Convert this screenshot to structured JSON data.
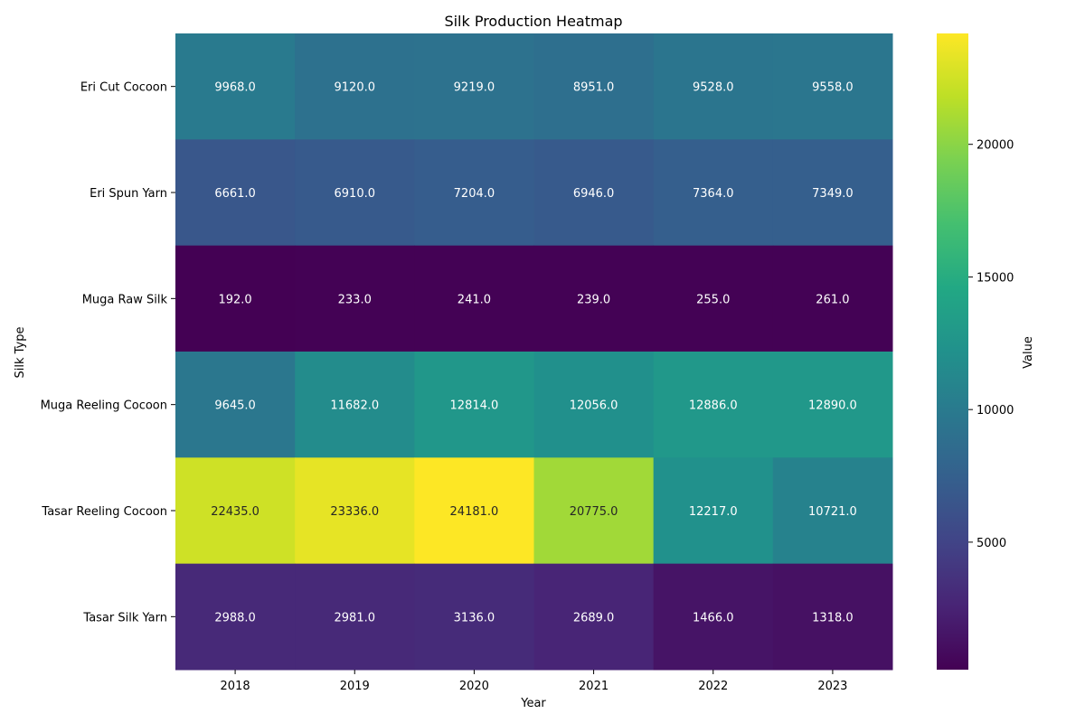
{
  "chart_data": {
    "type": "heatmap",
    "title": "Silk Production Heatmap",
    "xlabel": "Year",
    "ylabel": "Silk Type",
    "x_categories": [
      "2018",
      "2019",
      "2020",
      "2021",
      "2022",
      "2023"
    ],
    "y_categories": [
      "Eri Cut Cocoon",
      "Eri Spun Yarn",
      "Muga Raw Silk",
      "Muga Reeling Cocoon",
      "Tasar Reeling Cocoon",
      "Tasar Silk Yarn"
    ],
    "values": [
      [
        9968.0,
        9120.0,
        9219.0,
        8951.0,
        9528.0,
        9558.0
      ],
      [
        6661.0,
        6910.0,
        7204.0,
        6946.0,
        7364.0,
        7349.0
      ],
      [
        192.0,
        233.0,
        241.0,
        239.0,
        255.0,
        261.0
      ],
      [
        9645.0,
        11682.0,
        12814.0,
        12056.0,
        12886.0,
        12890.0
      ],
      [
        22435.0,
        23336.0,
        24181.0,
        20775.0,
        12217.0,
        10721.0
      ],
      [
        2988.0,
        2981.0,
        3136.0,
        2689.0,
        1466.0,
        1318.0
      ]
    ],
    "colormap": "viridis",
    "value_range": [
      192.0,
      24181.0
    ],
    "colorbar": {
      "label": "Value",
      "ticks": [
        5000,
        10000,
        15000,
        20000
      ],
      "tick_labels": [
        "5000",
        "10000",
        "15000",
        "20000"
      ]
    },
    "annotation_format": "one_decimal",
    "grid": false,
    "legend": "colorbar-right"
  }
}
